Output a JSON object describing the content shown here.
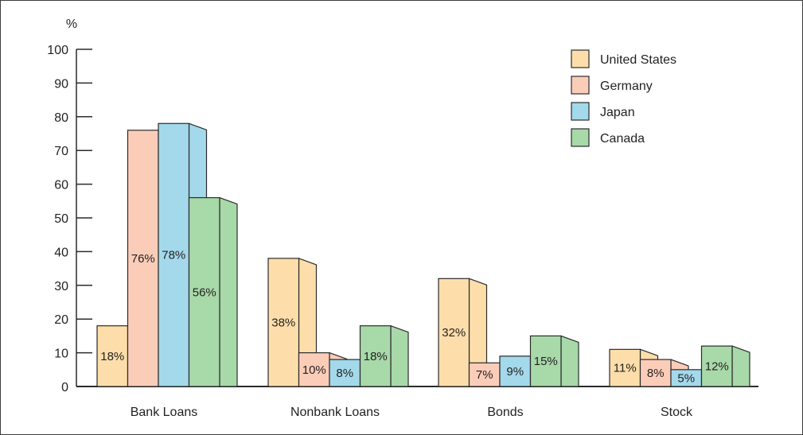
{
  "chart_data": {
    "type": "bar",
    "ylabel": "%",
    "ylim": [
      0,
      100
    ],
    "yticks": [
      0,
      10,
      20,
      30,
      40,
      50,
      60,
      70,
      80,
      90,
      100
    ],
    "categories": [
      "Bank Loans",
      "Nonbank Loans",
      "Bonds",
      "Stock"
    ],
    "series": [
      {
        "name": "United States",
        "color": "#fddeaa",
        "values": [
          18,
          38,
          32,
          11
        ],
        "labels": [
          "18%",
          "38%",
          "32%",
          "11%"
        ]
      },
      {
        "name": "Germany",
        "color": "#fbcdb9",
        "values": [
          76,
          10,
          7,
          8
        ],
        "labels": [
          "76%",
          "10%",
          "7%",
          "8%"
        ]
      },
      {
        "name": "Japan",
        "color": "#a3d9ea",
        "values": [
          78,
          8,
          9,
          5
        ],
        "labels": [
          "78%",
          "8%",
          "9%",
          "5%"
        ]
      },
      {
        "name": "Canada",
        "color": "#a8d9a9",
        "values": [
          56,
          18,
          15,
          12
        ],
        "labels": [
          "56%",
          "18%",
          "15%",
          "12%"
        ]
      }
    ],
    "legend_position": "top-right",
    "grid": false,
    "style": "3d"
  }
}
